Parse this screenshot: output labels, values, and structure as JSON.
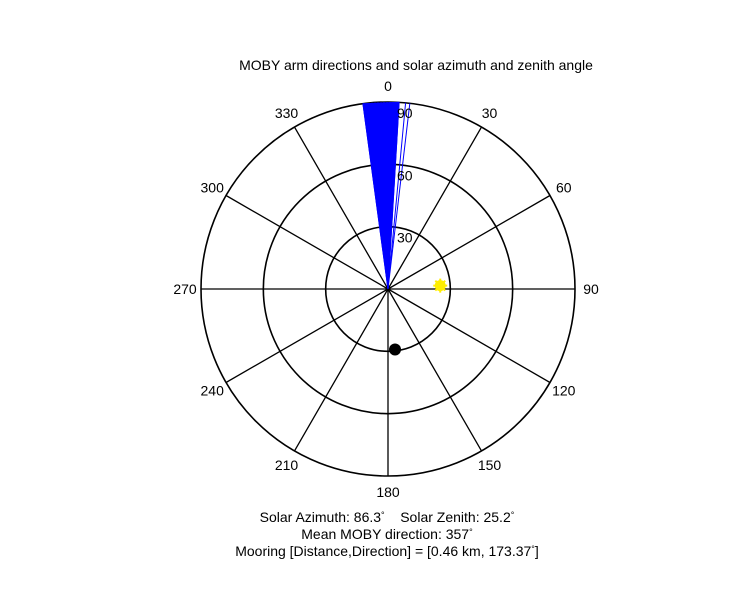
{
  "chart_data": {
    "type": "polar",
    "title": "MOBY arm directions and solar azimuth and zenith angle",
    "angle_ticks": [
      "0",
      "30",
      "60",
      "90",
      "120",
      "150",
      "180",
      "210",
      "240",
      "270",
      "300",
      "330"
    ],
    "radial_ticks": [
      "30",
      "60",
      "90"
    ],
    "rmax": 90,
    "arm_directions": {
      "color": "#0000ff",
      "min_deg": 352.3,
      "max_deg": 3.4,
      "max_radius": 90
    },
    "sun": {
      "azimuth_deg": 86.3,
      "zenith_deg": 25.2,
      "color": "#ffee00"
    },
    "mooring": {
      "direction_deg": 173.37,
      "radius": 29.3,
      "color": "#000000"
    },
    "grid": true
  },
  "captions": {
    "line1_azimuth": "Solar Azimuth: 86.3",
    "line1_zenith": "Solar Zenith: 25.2",
    "line2": "Mean MOBY direction: 357",
    "line3_prefix": "Mooring [Distance,Direction] = [0.46 km, 173.37",
    "line3_suffix": "]",
    "degree_symbol": "°"
  }
}
